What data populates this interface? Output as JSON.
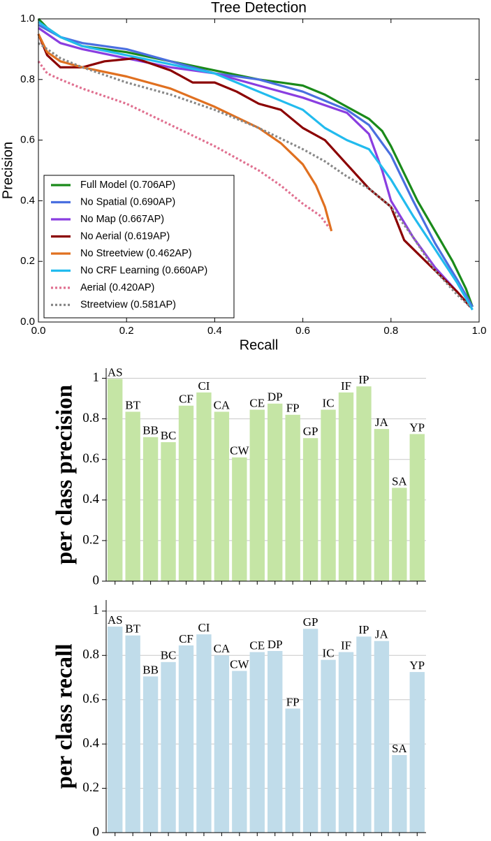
{
  "chart_data": [
    {
      "type": "line",
      "title": "Tree Detection",
      "x_label": "Recall",
      "y_label": "Precision",
      "xlim": [
        0,
        1
      ],
      "ylim": [
        0,
        1
      ],
      "xticks": [
        {
          "value": 0,
          "label": "0.0"
        },
        {
          "value": 0.2,
          "label": "0.2"
        },
        {
          "value": 0.4,
          "label": "0.4"
        },
        {
          "value": 0.6,
          "label": "0.6"
        },
        {
          "value": 0.8,
          "label": "0.8"
        },
        {
          "value": 1,
          "label": "1.0"
        }
      ],
      "yticks": [
        {
          "value": 0,
          "label": "0.0"
        },
        {
          "value": 0.2,
          "label": "0.2"
        },
        {
          "value": 0.4,
          "label": "0.4"
        },
        {
          "value": 0.6,
          "label": "0.6"
        },
        {
          "value": 0.8,
          "label": "0.8"
        },
        {
          "value": 1,
          "label": "1.0"
        }
      ],
      "legend": "lower left",
      "series": [
        {
          "name": "Full Model (0.706AP)",
          "color": "#1a8a1a",
          "style": "solid",
          "x": [
            0,
            0.02,
            0.05,
            0.1,
            0.2,
            0.3,
            0.4,
            0.5,
            0.55,
            0.6,
            0.65,
            0.7,
            0.75,
            0.78,
            0.8,
            0.83,
            0.86,
            0.9,
            0.94,
            0.97,
            0.985
          ],
          "values": [
            1.0,
            0.97,
            0.94,
            0.91,
            0.89,
            0.86,
            0.83,
            0.8,
            0.79,
            0.78,
            0.75,
            0.71,
            0.67,
            0.63,
            0.58,
            0.49,
            0.4,
            0.3,
            0.2,
            0.11,
            0.05
          ]
        },
        {
          "name": "No Spatial (0.690AP)",
          "color": "#4a6fe0",
          "style": "solid",
          "x": [
            0,
            0.05,
            0.1,
            0.2,
            0.3,
            0.4,
            0.5,
            0.6,
            0.7,
            0.75,
            0.8,
            0.85,
            0.9,
            0.95,
            0.985
          ],
          "values": [
            0.98,
            0.94,
            0.92,
            0.9,
            0.86,
            0.82,
            0.8,
            0.76,
            0.7,
            0.65,
            0.55,
            0.4,
            0.26,
            0.14,
            0.05
          ]
        },
        {
          "name": "No Map (0.667AP)",
          "color": "#8a3ee0",
          "style": "solid",
          "x": [
            0,
            0.05,
            0.1,
            0.2,
            0.3,
            0.4,
            0.5,
            0.6,
            0.7,
            0.75,
            0.78,
            0.8,
            0.85,
            0.9,
            0.95,
            0.98
          ],
          "values": [
            0.97,
            0.92,
            0.9,
            0.87,
            0.84,
            0.82,
            0.78,
            0.74,
            0.69,
            0.62,
            0.5,
            0.4,
            0.28,
            0.18,
            0.1,
            0.05
          ]
        },
        {
          "name": "No Aerial (0.619AP)",
          "color": "#8b0000",
          "style": "solid",
          "x": [
            0,
            0.02,
            0.05,
            0.1,
            0.15,
            0.22,
            0.3,
            0.35,
            0.4,
            0.45,
            0.5,
            0.55,
            0.6,
            0.65,
            0.7,
            0.75,
            0.8,
            0.83,
            0.9,
            0.95,
            0.98
          ],
          "values": [
            0.95,
            0.88,
            0.84,
            0.84,
            0.86,
            0.87,
            0.83,
            0.79,
            0.79,
            0.76,
            0.72,
            0.7,
            0.64,
            0.6,
            0.52,
            0.44,
            0.38,
            0.27,
            0.17,
            0.1,
            0.05
          ]
        },
        {
          "name": "No Streetview (0.462AP)",
          "color": "#e07020",
          "style": "solid",
          "x": [
            0,
            0.02,
            0.05,
            0.1,
            0.2,
            0.3,
            0.4,
            0.5,
            0.55,
            0.6,
            0.63,
            0.65,
            0.665
          ],
          "values": [
            0.95,
            0.89,
            0.86,
            0.84,
            0.81,
            0.77,
            0.71,
            0.64,
            0.59,
            0.52,
            0.45,
            0.38,
            0.3
          ]
        },
        {
          "name": "No CRF Learning (0.660AP)",
          "color": "#22bbee",
          "style": "solid",
          "x": [
            0,
            0.05,
            0.1,
            0.2,
            0.3,
            0.4,
            0.5,
            0.55,
            0.6,
            0.65,
            0.7,
            0.75,
            0.8,
            0.85,
            0.9,
            0.95,
            0.985
          ],
          "values": [
            0.99,
            0.94,
            0.91,
            0.88,
            0.85,
            0.82,
            0.76,
            0.73,
            0.7,
            0.64,
            0.6,
            0.57,
            0.47,
            0.35,
            0.24,
            0.13,
            0.04
          ]
        },
        {
          "name": "Aerial (0.420AP)",
          "color": "#e07090",
          "style": "dotted",
          "x": [
            0,
            0.02,
            0.05,
            0.1,
            0.2,
            0.3,
            0.4,
            0.5,
            0.55,
            0.6,
            0.64,
            0.66
          ],
          "values": [
            0.86,
            0.82,
            0.8,
            0.77,
            0.72,
            0.65,
            0.58,
            0.5,
            0.45,
            0.39,
            0.35,
            0.31
          ]
        },
        {
          "name": "Streetview (0.581AP)",
          "color": "#888888",
          "style": "dotted",
          "x": [
            0,
            0.05,
            0.1,
            0.2,
            0.3,
            0.4,
            0.5,
            0.6,
            0.65,
            0.7,
            0.75,
            0.8,
            0.85,
            0.9,
            0.95,
            0.98
          ],
          "values": [
            0.92,
            0.87,
            0.84,
            0.79,
            0.75,
            0.7,
            0.64,
            0.57,
            0.53,
            0.48,
            0.44,
            0.38,
            0.28,
            0.17,
            0.09,
            0.05
          ]
        }
      ]
    },
    {
      "type": "bar",
      "y_label": "per class precision",
      "color": "#c5e5a5",
      "grid": true,
      "ylim": [
        0,
        1.05
      ],
      "yticks": [
        0,
        0.2,
        0.4,
        0.6,
        0.8,
        1
      ],
      "categories": [
        "AS",
        "BT",
        "BB",
        "BC",
        "CF",
        "CI",
        "CA",
        "CW",
        "CE",
        "DP",
        "FP",
        "GP",
        "IC",
        "IF",
        "IP",
        "JA",
        "SA",
        "YP"
      ],
      "values": [
        0.997,
        0.835,
        0.71,
        0.685,
        0.865,
        0.93,
        0.835,
        0.61,
        0.845,
        0.875,
        0.82,
        0.705,
        0.845,
        0.93,
        0.96,
        0.75,
        0.46,
        0.725
      ]
    },
    {
      "type": "bar",
      "y_label": "per class recall",
      "color": "#c0dcea",
      "grid": true,
      "ylim": [
        0,
        1.05
      ],
      "yticks": [
        0,
        0.2,
        0.4,
        0.6,
        0.8,
        1
      ],
      "categories": [
        "AS",
        "BT",
        "BB",
        "BC",
        "CF",
        "CI",
        "CA",
        "CW",
        "CE",
        "DP",
        "FP",
        "GP",
        "IC",
        "IF",
        "IP",
        "JA",
        "SA",
        "YP"
      ],
      "values": [
        0.93,
        0.89,
        0.705,
        0.77,
        0.845,
        0.895,
        0.8,
        0.73,
        0.815,
        0.82,
        0.56,
        0.92,
        0.78,
        0.815,
        0.885,
        0.865,
        0.35,
        0.725
      ]
    }
  ]
}
